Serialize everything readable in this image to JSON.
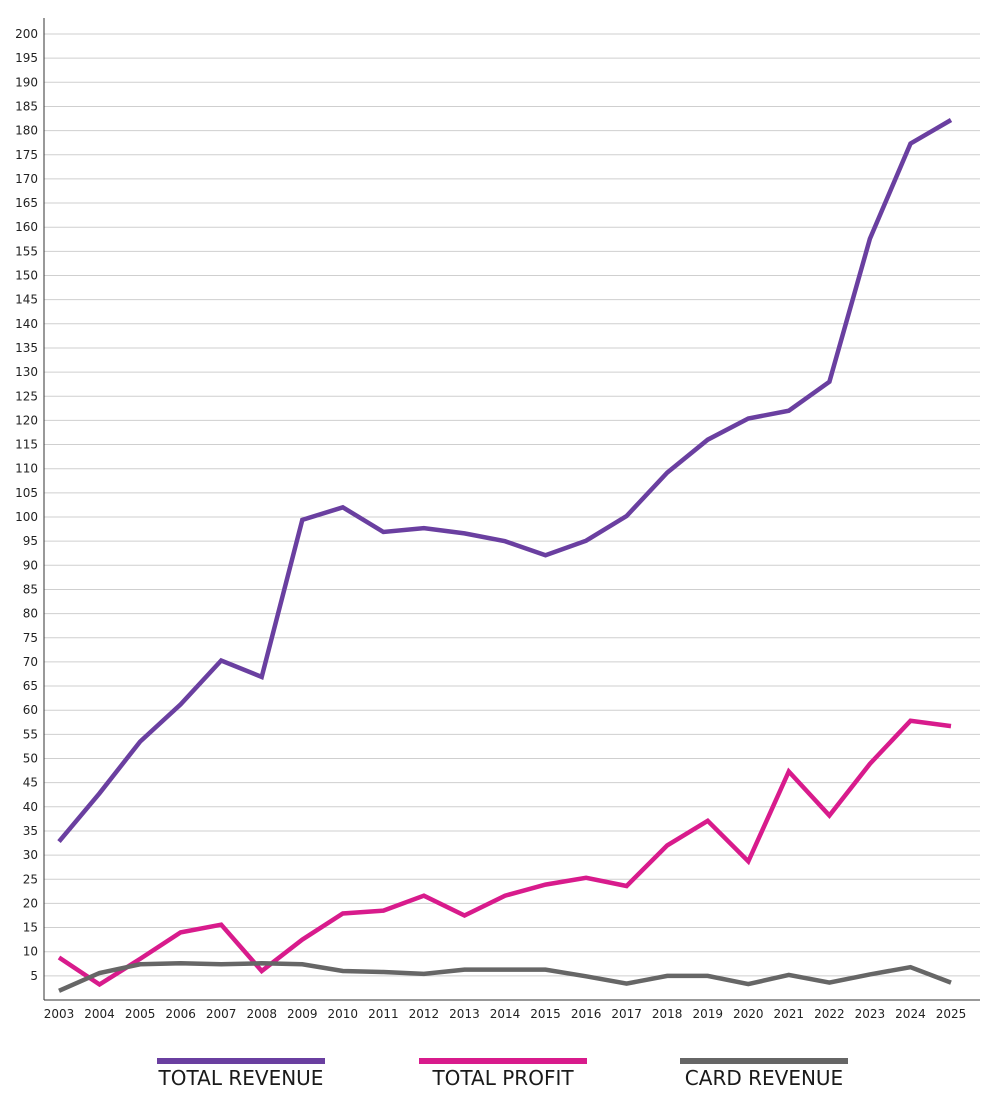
{
  "chart_data": {
    "type": "line",
    "categories": [
      "2003",
      "2004",
      "2005",
      "2006",
      "2007",
      "2008",
      "2009",
      "2010",
      "2011",
      "2012",
      "2013",
      "2014",
      "2015",
      "2016",
      "2017",
      "2018",
      "2019",
      "2020",
      "2021",
      "2022",
      "2023",
      "2024",
      "2025"
    ],
    "series": [
      {
        "name": "TOTAL REVENUE",
        "color": "#6a3fa0",
        "values": [
          32.8,
          42.8,
          53.5,
          61.2,
          70.3,
          66.9,
          99.4,
          102.0,
          96.9,
          97.7,
          96.6,
          95.0,
          92.1,
          95.1,
          100.2,
          109.2,
          116.0,
          120.4,
          122.0,
          128.0,
          157.6,
          177.3,
          182.2
        ]
      },
      {
        "name": "TOTAL PROFIT",
        "color": "#d81b8c",
        "values": [
          8.8,
          3.2,
          8.5,
          14.0,
          15.6,
          6.0,
          12.5,
          17.9,
          18.5,
          21.6,
          17.5,
          21.6,
          23.9,
          25.3,
          23.6,
          32.0,
          37.1,
          28.7,
          47.3,
          38.2,
          48.9,
          57.8,
          56.7
        ]
      },
      {
        "name": "CARD REVENUE",
        "color": "#666666",
        "values": [
          1.9,
          5.6,
          7.4,
          7.6,
          7.4,
          7.6,
          7.4,
          6.0,
          5.8,
          5.4,
          6.3,
          6.3,
          6.3,
          4.9,
          3.4,
          5.0,
          5.0,
          3.3,
          5.2,
          3.6,
          5.3,
          6.8,
          3.6
        ]
      }
    ],
    "yticks": [
      "5",
      "10",
      "15",
      "20",
      "25",
      "30",
      "35",
      "40",
      "45",
      "50",
      "55",
      "60",
      "65",
      "70",
      "75",
      "80",
      "85",
      "90",
      "95",
      "100",
      "105",
      "110",
      "115",
      "120",
      "125",
      "130",
      "135",
      "140",
      "145",
      "150",
      "155",
      "160",
      "165",
      "170",
      "175",
      "180",
      "185",
      "190",
      "195",
      "200"
    ],
    "ylim": [
      0,
      200
    ],
    "grid": true,
    "legend": "bottom",
    "title": "",
    "xlabel": "",
    "ylabel": ""
  },
  "legend": {
    "items": [
      {
        "label": "TOTAL REVENUE",
        "color": "#6a3fa0"
      },
      {
        "label": "TOTAL PROFIT",
        "color": "#d81b8c"
      },
      {
        "label": "CARD REVENUE",
        "color": "#666666"
      }
    ]
  }
}
